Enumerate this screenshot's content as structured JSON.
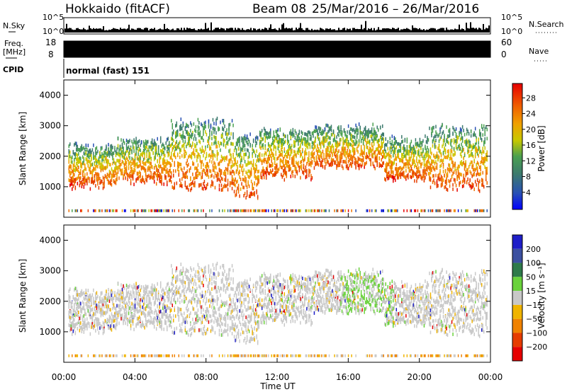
{
  "header": {
    "station": "Hokkaido (fitACF)",
    "beam": "Beam 08",
    "date_range": "25/Mar/2016 – 26/Mar/2016"
  },
  "aux_panels": {
    "nsky_label": "N.Sky",
    "nsky_ticks": [
      "10^5",
      "10^0"
    ],
    "nsearch_label": "N.Search",
    "nsearch_ticks": [
      "10^5",
      "10^0"
    ],
    "freq_label_line1": "Freq.",
    "freq_label_line2": "[MHz]",
    "freq_ticks": [
      "18",
      "8"
    ],
    "nave_label": "Nave",
    "nave_ticks": [
      "60",
      "0"
    ],
    "cpid_label": "CPID",
    "cpid_value": "normal (fast) 151"
  },
  "chart_data": [
    {
      "type": "heatmap",
      "name": "power",
      "ylabel": "Slant Range [km]",
      "y_ticks": [
        "4000",
        "3000",
        "2000",
        "1000"
      ],
      "colorbar_label": "Power [dB]",
      "colorbar_ticks": [
        "28",
        "24",
        "20",
        "16",
        "12",
        "8",
        "4"
      ],
      "colors": [
        "#0000e6",
        "#2850b4",
        "#3c7a6e",
        "#4aa050",
        "#c8c800",
        "#f0a000",
        "#f07000",
        "#e63c00",
        "#e60000"
      ],
      "ylim": [
        0,
        4500
      ],
      "xlim_hours": [
        0,
        24
      ],
      "gates": [
        [
          0.25,
          3.0,
          1100,
          2400
        ],
        [
          3.0,
          6.0,
          1200,
          2600
        ],
        [
          6.0,
          9.5,
          1000,
          3200
        ],
        [
          9.5,
          11.0,
          700,
          2700
        ],
        [
          11.0,
          14.0,
          1400,
          2900
        ],
        [
          14.0,
          18.0,
          1700,
          3000
        ],
        [
          18.0,
          20.5,
          1300,
          2600
        ],
        [
          20.5,
          23.8,
          1000,
          3000
        ]
      ]
    },
    {
      "type": "heatmap",
      "name": "velocity",
      "ylabel": "Slant Range [km]",
      "y_ticks": [
        "4000",
        "3000",
        "2000",
        "1000"
      ],
      "colorbar_label": "Velocity [m s⁻¹]",
      "colorbar_ticks": [
        "200",
        "100",
        "50",
        "15",
        "−15",
        "−50",
        "−100",
        "−200"
      ],
      "colors": [
        "#1e1ec8",
        "#3c50a0",
        "#2e7a4a",
        "#6ad23c",
        "#c8c8c8",
        "#f0b400",
        "#f08200",
        "#e63c00",
        "#e60000"
      ],
      "ylim": [
        0,
        4500
      ],
      "xlim_hours": [
        0,
        24
      ],
      "xlabel": "Time UT",
      "x_ticks": [
        "00:00",
        "04:00",
        "08:00",
        "12:00",
        "16:00",
        "20:00",
        "00:00"
      ]
    }
  ]
}
